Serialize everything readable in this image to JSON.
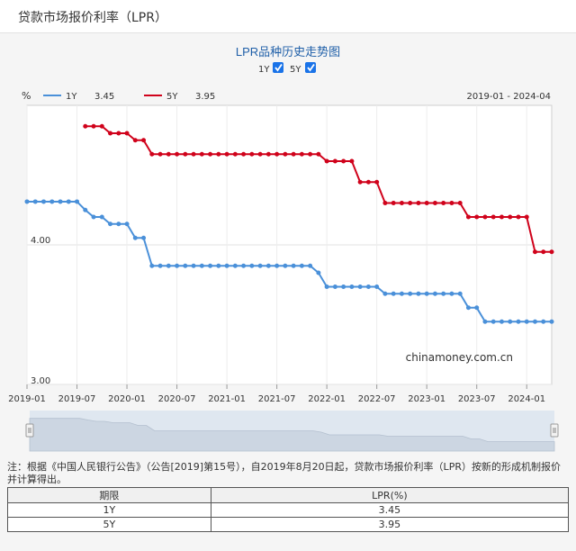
{
  "page": {
    "title": "贷款市场报价利率（LPR）"
  },
  "toggles": [
    {
      "label": "1Y",
      "checked": true
    },
    {
      "label": "5Y",
      "checked": true
    }
  ],
  "watermark": "chinamoney.com.cn",
  "note": "注：根据《中国人民银行公告》（公告[2019]第15号），自2019年8月20日起，贷款市场报价利率（LPR）按新的形成机制报价并计算得出。",
  "table": {
    "headers": [
      "期限",
      "LPR(%)"
    ],
    "rows": [
      [
        "1Y",
        "3.45"
      ],
      [
        "5Y",
        "3.95"
      ]
    ]
  },
  "chart_data": {
    "type": "line",
    "title": "LPR品种历史走势图",
    "ylabel": "%",
    "date_range": "2019-01 - 2024-04",
    "ylim": [
      3.0,
      5.0
    ],
    "y_ticks": [
      "4.00",
      "3.00"
    ],
    "x_ticks": [
      "2019-01",
      "2019-07",
      "2020-01",
      "2020-07",
      "2021-01",
      "2021-07",
      "2022-01",
      "2022-07",
      "2023-01",
      "2023-07",
      "2024-01"
    ],
    "grid": true,
    "legend_position": "top-left",
    "series": [
      {
        "name": "1Y",
        "latest": "3.45",
        "color": "#4a90d9",
        "points": [
          [
            "2019-01-01",
            4.31
          ],
          [
            "2019-02-01",
            4.31
          ],
          [
            "2019-03-01",
            4.31
          ],
          [
            "2019-04-01",
            4.31
          ],
          [
            "2019-05-01",
            4.31
          ],
          [
            "2019-06-01",
            4.31
          ],
          [
            "2019-07-01",
            4.31
          ],
          [
            "2019-08-01",
            4.25
          ],
          [
            "2019-09-01",
            4.2
          ],
          [
            "2019-10-01",
            4.2
          ],
          [
            "2019-11-01",
            4.15
          ],
          [
            "2019-12-01",
            4.15
          ],
          [
            "2020-01-01",
            4.15
          ],
          [
            "2020-02-01",
            4.05
          ],
          [
            "2020-03-01",
            4.05
          ],
          [
            "2020-04-01",
            3.85
          ],
          [
            "2020-05-01",
            3.85
          ],
          [
            "2020-06-01",
            3.85
          ],
          [
            "2020-07-01",
            3.85
          ],
          [
            "2020-08-01",
            3.85
          ],
          [
            "2020-09-01",
            3.85
          ],
          [
            "2020-10-01",
            3.85
          ],
          [
            "2020-11-01",
            3.85
          ],
          [
            "2020-12-01",
            3.85
          ],
          [
            "2021-01-01",
            3.85
          ],
          [
            "2021-02-01",
            3.85
          ],
          [
            "2021-03-01",
            3.85
          ],
          [
            "2021-04-01",
            3.85
          ],
          [
            "2021-05-01",
            3.85
          ],
          [
            "2021-06-01",
            3.85
          ],
          [
            "2021-07-01",
            3.85
          ],
          [
            "2021-08-01",
            3.85
          ],
          [
            "2021-09-01",
            3.85
          ],
          [
            "2021-10-01",
            3.85
          ],
          [
            "2021-11-01",
            3.85
          ],
          [
            "2021-12-01",
            3.8
          ],
          [
            "2022-01-01",
            3.7
          ],
          [
            "2022-02-01",
            3.7
          ],
          [
            "2022-03-01",
            3.7
          ],
          [
            "2022-04-01",
            3.7
          ],
          [
            "2022-05-01",
            3.7
          ],
          [
            "2022-06-01",
            3.7
          ],
          [
            "2022-07-01",
            3.7
          ],
          [
            "2022-08-01",
            3.65
          ],
          [
            "2022-09-01",
            3.65
          ],
          [
            "2022-10-01",
            3.65
          ],
          [
            "2022-11-01",
            3.65
          ],
          [
            "2022-12-01",
            3.65
          ],
          [
            "2023-01-01",
            3.65
          ],
          [
            "2023-02-01",
            3.65
          ],
          [
            "2023-03-01",
            3.65
          ],
          [
            "2023-04-01",
            3.65
          ],
          [
            "2023-05-01",
            3.65
          ],
          [
            "2023-06-01",
            3.55
          ],
          [
            "2023-07-01",
            3.55
          ],
          [
            "2023-08-01",
            3.45
          ],
          [
            "2023-09-01",
            3.45
          ],
          [
            "2023-10-01",
            3.45
          ],
          [
            "2023-11-01",
            3.45
          ],
          [
            "2023-12-01",
            3.45
          ],
          [
            "2024-01-01",
            3.45
          ],
          [
            "2024-02-01",
            3.45
          ],
          [
            "2024-03-01",
            3.45
          ],
          [
            "2024-04-01",
            3.45
          ]
        ]
      },
      {
        "name": "5Y",
        "latest": "3.95",
        "color": "#d0021b",
        "points": [
          [
            "2019-08-01",
            4.85
          ],
          [
            "2019-09-01",
            4.85
          ],
          [
            "2019-10-01",
            4.85
          ],
          [
            "2019-11-01",
            4.8
          ],
          [
            "2019-12-01",
            4.8
          ],
          [
            "2020-01-01",
            4.8
          ],
          [
            "2020-02-01",
            4.75
          ],
          [
            "2020-03-01",
            4.75
          ],
          [
            "2020-04-01",
            4.65
          ],
          [
            "2020-05-01",
            4.65
          ],
          [
            "2020-06-01",
            4.65
          ],
          [
            "2020-07-01",
            4.65
          ],
          [
            "2020-08-01",
            4.65
          ],
          [
            "2020-09-01",
            4.65
          ],
          [
            "2020-10-01",
            4.65
          ],
          [
            "2020-11-01",
            4.65
          ],
          [
            "2020-12-01",
            4.65
          ],
          [
            "2021-01-01",
            4.65
          ],
          [
            "2021-02-01",
            4.65
          ],
          [
            "2021-03-01",
            4.65
          ],
          [
            "2021-04-01",
            4.65
          ],
          [
            "2021-05-01",
            4.65
          ],
          [
            "2021-06-01",
            4.65
          ],
          [
            "2021-07-01",
            4.65
          ],
          [
            "2021-08-01",
            4.65
          ],
          [
            "2021-09-01",
            4.65
          ],
          [
            "2021-10-01",
            4.65
          ],
          [
            "2021-11-01",
            4.65
          ],
          [
            "2021-12-01",
            4.65
          ],
          [
            "2022-01-01",
            4.6
          ],
          [
            "2022-02-01",
            4.6
          ],
          [
            "2022-03-01",
            4.6
          ],
          [
            "2022-04-01",
            4.6
          ],
          [
            "2022-05-01",
            4.45
          ],
          [
            "2022-06-01",
            4.45
          ],
          [
            "2022-07-01",
            4.45
          ],
          [
            "2022-08-01",
            4.3
          ],
          [
            "2022-09-01",
            4.3
          ],
          [
            "2022-10-01",
            4.3
          ],
          [
            "2022-11-01",
            4.3
          ],
          [
            "2022-12-01",
            4.3
          ],
          [
            "2023-01-01",
            4.3
          ],
          [
            "2023-02-01",
            4.3
          ],
          [
            "2023-03-01",
            4.3
          ],
          [
            "2023-04-01",
            4.3
          ],
          [
            "2023-05-01",
            4.3
          ],
          [
            "2023-06-01",
            4.2
          ],
          [
            "2023-07-01",
            4.2
          ],
          [
            "2023-08-01",
            4.2
          ],
          [
            "2023-09-01",
            4.2
          ],
          [
            "2023-10-01",
            4.2
          ],
          [
            "2023-11-01",
            4.2
          ],
          [
            "2023-12-01",
            4.2
          ],
          [
            "2024-01-01",
            4.2
          ],
          [
            "2024-02-01",
            3.95
          ],
          [
            "2024-03-01",
            3.95
          ],
          [
            "2024-04-01",
            3.95
          ]
        ]
      }
    ]
  }
}
